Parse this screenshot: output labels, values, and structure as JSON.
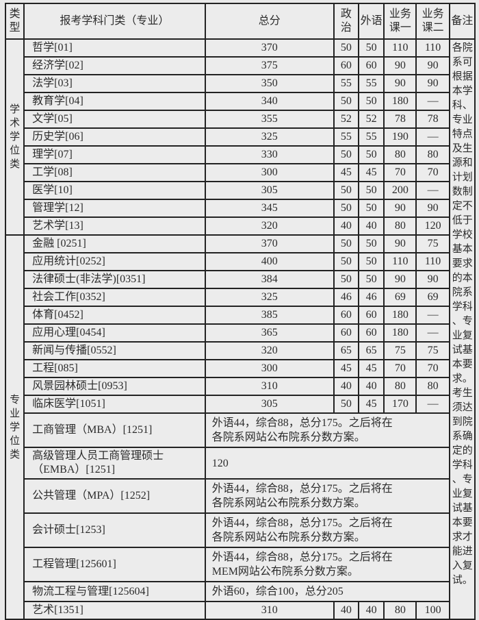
{
  "table": {
    "header": {
      "type": "类\n型",
      "major": "报考学科门类（专业）",
      "total": "总分",
      "politics": "政\n治",
      "foreign": "外语",
      "course1": "业务\n课一",
      "course2": "业务\n课二",
      "note": "备注"
    },
    "note_text": "各院系可根据本学科、专业特点及生源和计划数制定不低于学校基本要求的本院系学科、专业复试基本要求。考生须达到院系确定的学科、专业复试基本要求才能进入复试。",
    "groups": [
      {
        "label": "学术学位类",
        "row_count": 11
      },
      {
        "label": "专业学位类",
        "row_count": 17
      }
    ],
    "rows": [
      {
        "major": "哲学[01]",
        "total": "370",
        "politics": "50",
        "foreign": "50",
        "course1": "110",
        "course2": "110"
      },
      {
        "major": "经济学[02]",
        "total": "375",
        "politics": "60",
        "foreign": "60",
        "course1": "90",
        "course2": "90"
      },
      {
        "major": "法学[03]",
        "total": "350",
        "politics": "55",
        "foreign": "55",
        "course1": "90",
        "course2": "90"
      },
      {
        "major": "教育学[04]",
        "total": "340",
        "politics": "50",
        "foreign": "50",
        "course1": "180",
        "course2": "—"
      },
      {
        "major": "文学[05]",
        "total": "355",
        "politics": "52",
        "foreign": "52",
        "course1": "78",
        "course2": "78"
      },
      {
        "major": "历史学[06]",
        "total": "325",
        "politics": "55",
        "foreign": "55",
        "course1": "190",
        "course2": "—"
      },
      {
        "major": "理学[07]",
        "total": "330",
        "politics": "50",
        "foreign": "50",
        "course1": "80",
        "course2": "80"
      },
      {
        "major": "工学[08]",
        "total": "300",
        "politics": "45",
        "foreign": "45",
        "course1": "70",
        "course2": "70"
      },
      {
        "major": "医学[10]",
        "total": "305",
        "politics": "50",
        "foreign": "50",
        "course1": "200",
        "course2": "—"
      },
      {
        "major": "管理学[12]",
        "total": "345",
        "politics": "50",
        "foreign": "50",
        "course1": "90",
        "course2": "90"
      },
      {
        "major": "艺术学[13]",
        "total": "320",
        "politics": "40",
        "foreign": "40",
        "course1": "80",
        "course2": "120"
      },
      {
        "major": "金融 [0251]",
        "total": "370",
        "politics": "50",
        "foreign": "50",
        "course1": "90",
        "course2": "75"
      },
      {
        "major": "应用统计[0252]",
        "total": "400",
        "politics": "50",
        "foreign": "50",
        "course1": "110",
        "course2": "110"
      },
      {
        "major": "法律硕士(非法学)[0351]",
        "total": "384",
        "politics": "50",
        "foreign": "50",
        "course1": "90",
        "course2": "90"
      },
      {
        "major": "社会工作[0352]",
        "total": "325",
        "politics": "46",
        "foreign": "46",
        "course1": "69",
        "course2": "69"
      },
      {
        "major": "体育[0452]",
        "total": "385",
        "politics": "60",
        "foreign": "60",
        "course1": "180",
        "course2": "—"
      },
      {
        "major": "应用心理[0454]",
        "total": "365",
        "politics": "60",
        "foreign": "60",
        "course1": "180",
        "course2": "—"
      },
      {
        "major": "新闻与传播[0552]",
        "total": "320",
        "politics": "65",
        "foreign": "65",
        "course1": "75",
        "course2": "75"
      },
      {
        "major": "工程[085]",
        "total": "300",
        "politics": "45",
        "foreign": "45",
        "course1": "70",
        "course2": "70"
      },
      {
        "major": "风景园林硕士[0953]",
        "total": "310",
        "politics": "40",
        "foreign": "40",
        "course1": "80",
        "course2": "80"
      },
      {
        "major": "临床医学[1051]",
        "total": "305",
        "politics": "50",
        "foreign": "45",
        "course1": "170",
        "course2": "—"
      },
      {
        "major": "工商管理（MBA）[1251]",
        "merged": "外语44，综合88，总分175。之后将在各院系网站公布院系分数方案。"
      },
      {
        "major": "高级管理人员工商管理硕士\n（EMBA）[1251]",
        "merged": "120"
      },
      {
        "major": "公共管理（MPA）[1252]",
        "merged": "外语44，综合88，总分175。之后将在各院系网站公布院系分数方案。"
      },
      {
        "major": "会计硕士[1253]",
        "merged": "外语44，综合88，总分175。之后将在各院系网站公布院系分数方案。"
      },
      {
        "major": "工程管理[125601]",
        "merged": "外语44，综合88，总分175。之后将在MEM网站公布院系分数方案。"
      },
      {
        "major": "物流工程与管理[125604]",
        "merged": "外语60，综合100，总分205"
      },
      {
        "major": "艺术[1351]",
        "total": "310",
        "politics": "40",
        "foreign": "40",
        "course1": "80",
        "course2": "100"
      }
    ]
  }
}
